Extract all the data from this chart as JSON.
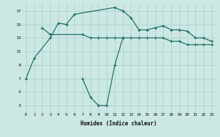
{
  "xlabel": "Humidex (Indice chaleur)",
  "x": [
    0,
    1,
    2,
    3,
    4,
    5,
    6,
    7,
    8,
    9,
    10,
    11,
    12,
    13,
    14,
    15,
    16,
    17,
    18,
    19,
    20,
    21,
    22,
    23
  ],
  "line1_x": [
    0,
    1,
    3,
    4,
    5,
    6,
    11,
    12,
    13,
    14,
    15,
    16,
    17,
    18,
    19,
    20,
    21,
    22,
    23
  ],
  "line1_y": [
    7,
    10,
    13,
    15.2,
    15,
    16.5,
    17.5,
    17,
    16,
    14.2,
    14.2,
    14.5,
    14.8,
    14.2,
    14.2,
    14,
    13,
    13,
    12.5
  ],
  "line2_x": [
    7,
    8,
    9,
    10,
    11,
    12
  ],
  "line2_y": [
    7,
    4.2,
    3,
    3,
    9,
    13
  ],
  "line3_x": [
    2,
    3,
    7,
    8,
    9,
    10,
    11,
    12,
    13,
    14,
    15,
    16,
    17,
    18,
    19,
    20,
    21,
    22,
    23
  ],
  "line3_y": [
    14.5,
    13.5,
    13.5,
    13,
    13,
    13,
    13,
    13,
    13,
    13,
    13,
    13,
    13,
    12.5,
    12.5,
    12,
    12,
    12,
    12
  ],
  "bg_color": "#cce8e4",
  "grid_color": "#aacfcb",
  "line_color": "#1a6b60",
  "ylim": [
    2,
    18
  ],
  "yticks": [
    3,
    5,
    7,
    9,
    11,
    13,
    15,
    17
  ],
  "xlim": [
    -0.5,
    23.5
  ]
}
